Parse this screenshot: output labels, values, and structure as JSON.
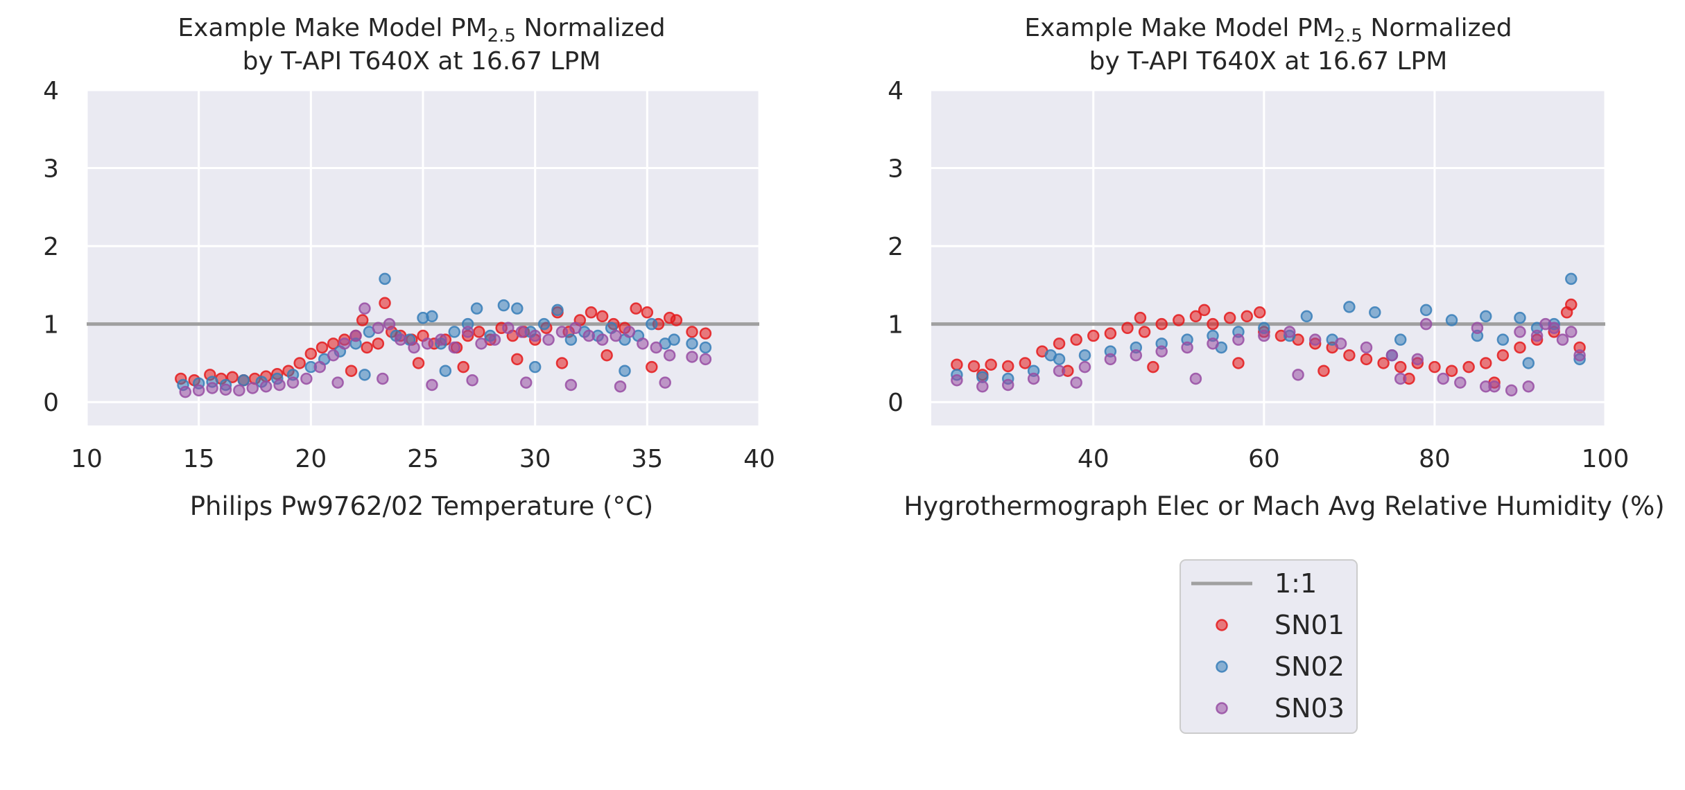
{
  "chart_data": [
    {
      "type": "scatter",
      "title_prefix": "Example Make Model PM",
      "title_subscript": "2.5",
      "title_suffix": " Normalized",
      "title_line2": "by T-API T640X at 16.67 LPM",
      "xlabel": "Philips Pw9762/02 Temperature (°C)",
      "ylabel": "",
      "xlim": [
        10,
        40
      ],
      "ylim": [
        -0.3,
        4
      ],
      "xticks": [
        10,
        15,
        20,
        25,
        30,
        35,
        40
      ],
      "yticks": [
        0,
        1,
        2,
        3,
        4
      ],
      "grid": true,
      "reference_line": {
        "name": "1:1",
        "y": 1.0,
        "color": "#a0a0a0"
      },
      "series": [
        {
          "name": "SN01",
          "color": "#e41a1c",
          "x": [
            14.2,
            14.8,
            15.5,
            16.0,
            16.5,
            17.0,
            17.5,
            18.0,
            18.5,
            19.0,
            19.5,
            20.0,
            20.5,
            21.0,
            21.5,
            22.0,
            22.3,
            22.5,
            23.0,
            23.3,
            23.6,
            24.0,
            24.5,
            25.0,
            25.5,
            26.0,
            26.5,
            27.0,
            27.5,
            28.0,
            28.5,
            29.0,
            29.5,
            30.0,
            30.5,
            31.0,
            31.5,
            32.0,
            32.5,
            33.0,
            33.5,
            34.0,
            34.5,
            35.0,
            35.5,
            36.0,
            36.3,
            37.0,
            37.6,
            21.8,
            24.8,
            26.8,
            29.2,
            31.2,
            33.2,
            35.2
          ],
          "y": [
            0.3,
            0.28,
            0.35,
            0.3,
            0.32,
            0.28,
            0.3,
            0.33,
            0.36,
            0.4,
            0.5,
            0.62,
            0.7,
            0.75,
            0.8,
            0.85,
            1.05,
            0.7,
            0.75,
            1.27,
            0.9,
            0.85,
            0.8,
            0.85,
            0.75,
            0.8,
            0.7,
            0.85,
            0.9,
            0.8,
            0.95,
            0.85,
            0.9,
            0.8,
            0.95,
            1.15,
            0.9,
            1.05,
            1.15,
            1.1,
            1.0,
            0.95,
            1.2,
            1.15,
            1.0,
            1.08,
            1.05,
            0.9,
            0.88,
            0.4,
            0.5,
            0.45,
            0.55,
            0.5,
            0.6,
            0.45
          ]
        },
        {
          "name": "SN02",
          "color": "#377eb8",
          "x": [
            14.3,
            15.0,
            15.6,
            16.2,
            17.0,
            17.8,
            18.5,
            19.2,
            20.0,
            20.6,
            21.3,
            22.0,
            22.6,
            23.3,
            23.8,
            24.4,
            25.0,
            25.4,
            25.8,
            26.4,
            27.0,
            27.4,
            28.0,
            28.6,
            29.2,
            29.8,
            30.4,
            31.0,
            31.6,
            32.2,
            32.8,
            33.4,
            34.0,
            34.6,
            35.2,
            35.8,
            36.2,
            37.0,
            37.6,
            22.4,
            26.0,
            30.0,
            34.0
          ],
          "y": [
            0.22,
            0.24,
            0.26,
            0.22,
            0.28,
            0.26,
            0.3,
            0.35,
            0.45,
            0.55,
            0.65,
            0.75,
            0.9,
            1.58,
            0.85,
            0.8,
            1.08,
            1.1,
            0.75,
            0.9,
            1.0,
            1.2,
            0.85,
            1.24,
            1.2,
            0.9,
            1.0,
            1.18,
            0.8,
            0.9,
            0.85,
            0.95,
            0.8,
            0.85,
            1.0,
            0.75,
            0.8,
            0.75,
            0.7,
            0.35,
            0.4,
            0.45,
            0.4
          ]
        },
        {
          "name": "SN03",
          "color": "#984ea3",
          "x": [
            14.4,
            15.0,
            15.6,
            16.2,
            16.8,
            17.4,
            18.0,
            18.6,
            19.2,
            19.8,
            20.4,
            21.0,
            21.5,
            22.0,
            22.4,
            23.0,
            23.5,
            24.0,
            24.6,
            25.2,
            25.8,
            26.4,
            27.0,
            27.6,
            28.2,
            28.8,
            29.4,
            30.0,
            30.6,
            31.2,
            31.8,
            32.4,
            33.0,
            33.6,
            34.2,
            34.8,
            35.4,
            36.0,
            37.0,
            37.6,
            21.2,
            23.2,
            25.4,
            27.2,
            29.6,
            31.6,
            33.8,
            35.8
          ],
          "y": [
            0.13,
            0.15,
            0.18,
            0.16,
            0.15,
            0.18,
            0.2,
            0.22,
            0.25,
            0.3,
            0.45,
            0.6,
            0.75,
            0.85,
            1.2,
            0.95,
            1.0,
            0.8,
            0.7,
            0.75,
            0.8,
            0.7,
            0.9,
            0.75,
            0.8,
            0.95,
            0.9,
            0.85,
            0.8,
            0.9,
            0.95,
            0.85,
            0.8,
            0.85,
            0.9,
            0.75,
            0.7,
            0.6,
            0.58,
            0.55,
            0.25,
            0.3,
            0.22,
            0.28,
            0.25,
            0.22,
            0.2,
            0.25
          ]
        }
      ]
    },
    {
      "type": "scatter",
      "title_prefix": "Example Make Model PM",
      "title_subscript": "2.5",
      "title_suffix": " Normalized",
      "title_line2": "by T-API T640X at 16.67 LPM",
      "xlabel": "Hygrothermograph Elec or Mach Avg Relative Humidity (%)",
      "ylabel": "",
      "xlim": [
        21,
        100
      ],
      "ylim": [
        -0.3,
        4
      ],
      "xticks": [
        40,
        60,
        80,
        100
      ],
      "yticks": [
        0,
        1,
        2,
        3,
        4
      ],
      "grid": true,
      "reference_line": {
        "name": "1:1",
        "y": 1.0,
        "color": "#a0a0a0"
      },
      "series": [
        {
          "name": "SN01",
          "color": "#e41a1c",
          "x": [
            24,
            26,
            28,
            30,
            32,
            34,
            36,
            38,
            40,
            42,
            44,
            45.5,
            46,
            48,
            50,
            52,
            53,
            54,
            56,
            58,
            59.5,
            60,
            62,
            64,
            66,
            68,
            70,
            72,
            74,
            76,
            78,
            80,
            82,
            84,
            86,
            88,
            90,
            92,
            94,
            95.5,
            96,
            97,
            27,
            37,
            47,
            57,
            67,
            77,
            87
          ],
          "y": [
            0.48,
            0.46,
            0.48,
            0.46,
            0.5,
            0.65,
            0.75,
            0.8,
            0.85,
            0.88,
            0.95,
            1.08,
            0.9,
            1.0,
            1.05,
            1.1,
            1.18,
            1.0,
            1.08,
            1.1,
            1.15,
            0.9,
            0.85,
            0.8,
            0.75,
            0.7,
            0.6,
            0.55,
            0.5,
            0.45,
            0.5,
            0.45,
            0.4,
            0.45,
            0.5,
            0.6,
            0.7,
            0.8,
            0.9,
            1.15,
            1.25,
            0.7,
            0.35,
            0.4,
            0.45,
            0.5,
            0.4,
            0.3,
            0.25
          ]
        },
        {
          "name": "SN02",
          "color": "#377eb8",
          "x": [
            24,
            27,
            30,
            33,
            36,
            39,
            42,
            45,
            48,
            51,
            54,
            57,
            60,
            63,
            65,
            68,
            70,
            73,
            76,
            79,
            82,
            85,
            86,
            88,
            90,
            92,
            94,
            96,
            97,
            35,
            55,
            75,
            91
          ],
          "y": [
            0.35,
            0.32,
            0.3,
            0.4,
            0.55,
            0.6,
            0.65,
            0.7,
            0.75,
            0.8,
            0.85,
            0.9,
            0.95,
            0.85,
            1.1,
            0.8,
            1.22,
            1.15,
            0.8,
            1.18,
            1.05,
            0.85,
            1.1,
            0.8,
            1.08,
            0.95,
            1.0,
            1.58,
            0.55,
            0.6,
            0.7,
            0.6,
            0.5
          ]
        },
        {
          "name": "SN03",
          "color": "#984ea3",
          "x": [
            24,
            27,
            30,
            33,
            36,
            39,
            42,
            45,
            48,
            51,
            54,
            57,
            60,
            63,
            66,
            69,
            72,
            75,
            78,
            79,
            81,
            83,
            85,
            87,
            89,
            90,
            91,
            92,
            93,
            94,
            95,
            96,
            97,
            38,
            52,
            64,
            76,
            86
          ],
          "y": [
            0.28,
            0.2,
            0.22,
            0.3,
            0.4,
            0.45,
            0.55,
            0.6,
            0.65,
            0.7,
            0.75,
            0.8,
            0.85,
            0.9,
            0.8,
            0.75,
            0.7,
            0.6,
            0.55,
            1.0,
            0.3,
            0.25,
            0.95,
            0.2,
            0.15,
            0.9,
            0.2,
            0.85,
            1.0,
            0.95,
            0.8,
            0.9,
            0.6,
            0.25,
            0.3,
            0.35,
            0.3,
            0.2
          ]
        }
      ]
    }
  ],
  "legend": {
    "placement": "bottom-right",
    "items": [
      {
        "label": "1:1",
        "kind": "line",
        "color": "#a0a0a0"
      },
      {
        "label": "SN01",
        "kind": "marker",
        "color": "#e41a1c"
      },
      {
        "label": "SN02",
        "kind": "marker",
        "color": "#377eb8"
      },
      {
        "label": "SN03",
        "kind": "marker",
        "color": "#984ea3"
      }
    ]
  }
}
